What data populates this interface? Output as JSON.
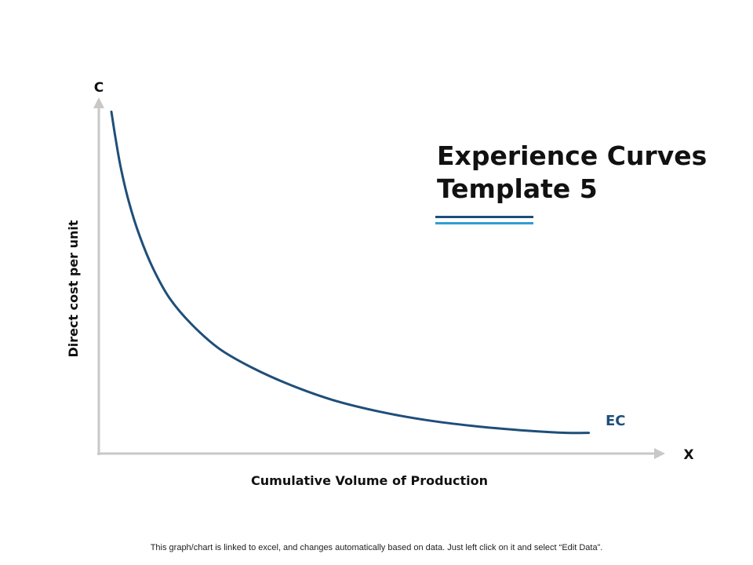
{
  "chart_data": {
    "type": "line",
    "title_lines": [
      "Experience Curves",
      "Template 5"
    ],
    "xlabel": "Cumulative Volume of Production",
    "ylabel": "Direct cost per unit",
    "x_axis_letter": "X",
    "y_axis_letter": "C",
    "xlim": [
      0,
      10
    ],
    "ylim": [
      0,
      10
    ],
    "grid": false,
    "series": [
      {
        "name": "EC",
        "color": "#1f4e79",
        "x": [
          0.23,
          0.3,
          0.4,
          0.55,
          0.75,
          1.0,
          1.3,
          1.7,
          2.2,
          2.8,
          3.5,
          4.3,
          5.2,
          6.1,
          7.0,
          7.9,
          8.6,
          9.0
        ],
        "y": [
          9.9,
          9.2,
          8.3,
          7.3,
          6.3,
          5.35,
          4.5,
          3.75,
          3.05,
          2.5,
          2.0,
          1.55,
          1.2,
          0.95,
          0.78,
          0.66,
          0.6,
          0.6
        ]
      }
    ]
  },
  "footer_note": "This graph/chart is linked to excel, and changes automatically based on data. Just left click on it and select “Edit Data”.",
  "colors": {
    "axis": "#c8c8c8",
    "curve": "#1f4e79",
    "accent_dark": "#1f4e79",
    "accent_light": "#2e9fd0"
  }
}
